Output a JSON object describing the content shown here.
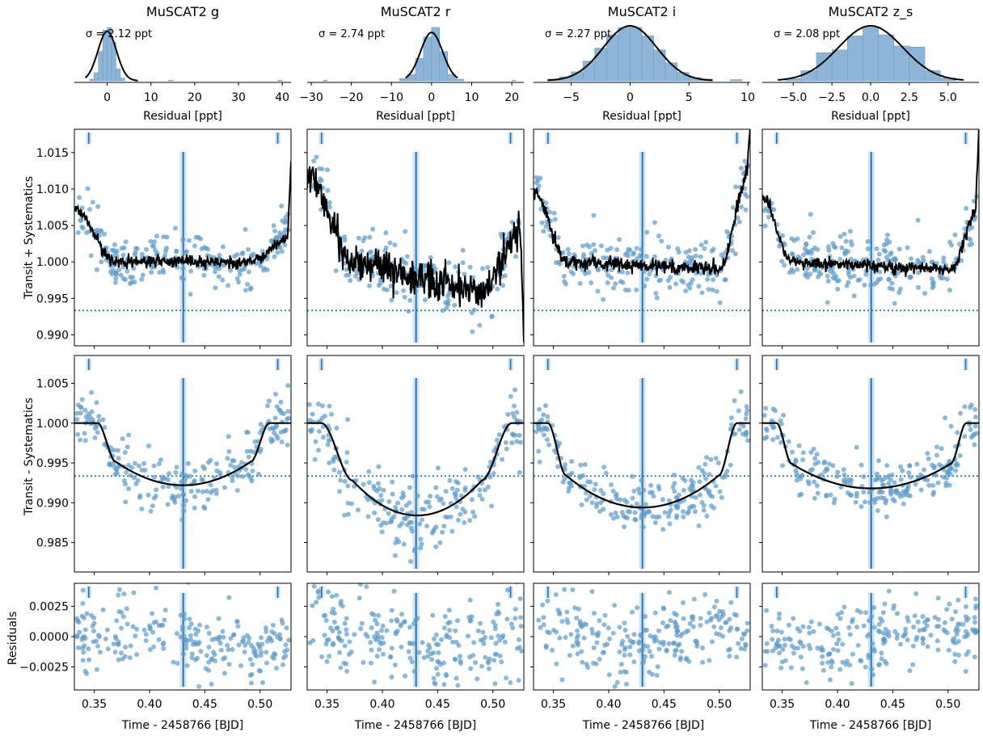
{
  "figure": {
    "time_xlabel": "Time -   2458766 [BJD]",
    "row_ylabels": [
      "Transit + Systematics",
      "Transit - Systematics",
      "Residuals"
    ]
  },
  "chart_data": [
    {
      "type": "histogram",
      "title": "MuSCAT2 g",
      "sigma_label": "σ =  2.12 ppt",
      "xlabel": "Residual [ppt]",
      "xlim": [
        -7.5,
        42
      ],
      "xticks": [
        0,
        10,
        20,
        30,
        40
      ],
      "tick_labels": [
        "0",
        "10",
        "20",
        "30",
        "40"
      ],
      "bins": [
        {
          "x0": -4.0,
          "x1": -3.0,
          "h": 0.03
        },
        {
          "x0": -3.0,
          "x1": -2.0,
          "h": 0.15
        },
        {
          "x0": -2.0,
          "x1": -1.0,
          "h": 0.55
        },
        {
          "x0": -1.0,
          "x1": 0.0,
          "h": 0.95
        },
        {
          "x0": 0.0,
          "x1": 1.0,
          "h": 1.0
        },
        {
          "x0": 1.0,
          "x1": 2.0,
          "h": 0.72
        },
        {
          "x0": 2.0,
          "x1": 3.0,
          "h": 0.22
        },
        {
          "x0": 3.0,
          "x1": 4.0,
          "h": 0.05
        },
        {
          "x0": 14.0,
          "x1": 15.0,
          "h": 0.01
        },
        {
          "x0": 39.0,
          "x1": 40.0,
          "h": 0.01
        }
      ],
      "fit": {
        "mu": 0,
        "sigma": 2.12,
        "range": [
          -5,
          7
        ],
        "peak": 0.9
      }
    },
    {
      "type": "histogram",
      "title": "MuSCAT2 r",
      "sigma_label": "σ =  2.74 ppt",
      "xlabel": "Residual [ppt]",
      "xlim": [
        -31,
        23
      ],
      "xticks": [
        -30,
        -20,
        -10,
        0,
        10,
        20
      ],
      "tick_labels": [
        "−30",
        "−20",
        "−10",
        "0",
        "10",
        "20"
      ],
      "bins": [
        {
          "x0": -27.0,
          "x1": -26.0,
          "h": 0.01
        },
        {
          "x0": -8.0,
          "x1": -6.0,
          "h": 0.04
        },
        {
          "x0": -6.0,
          "x1": -4.0,
          "h": 0.12
        },
        {
          "x0": -4.0,
          "x1": -2.0,
          "h": 0.42
        },
        {
          "x0": -2.0,
          "x1": 0.0,
          "h": 0.82
        },
        {
          "x0": 0.0,
          "x1": 2.0,
          "h": 1.0
        },
        {
          "x0": 2.0,
          "x1": 4.0,
          "h": 0.55
        },
        {
          "x0": 4.0,
          "x1": 6.0,
          "h": 0.12
        },
        {
          "x0": 6.0,
          "x1": 8.0,
          "h": 0.03
        },
        {
          "x0": 20.0,
          "x1": 21.0,
          "h": 0.01
        }
      ],
      "fit": {
        "mu": 0,
        "sigma": 2.74,
        "range": [
          -6.5,
          6.5
        ],
        "peak": 0.88
      }
    },
    {
      "type": "histogram",
      "title": "MuSCAT2 i",
      "sigma_label": "σ =  2.27 ppt",
      "xlabel": "Residual [ppt]",
      "xlim": [
        -8.2,
        10.2
      ],
      "xticks": [
        -5,
        0,
        5,
        10
      ],
      "tick_labels": [
        "−5",
        "0",
        "5",
        "10"
      ],
      "bins": [
        {
          "x0": -7.0,
          "x1": -6.0,
          "h": 0.03
        },
        {
          "x0": -6.0,
          "x1": -5.0,
          "h": 0.07
        },
        {
          "x0": -5.0,
          "x1": -4.0,
          "h": 0.16
        },
        {
          "x0": -4.0,
          "x1": -3.0,
          "h": 0.35
        },
        {
          "x0": -3.0,
          "x1": -2.0,
          "h": 0.58
        },
        {
          "x0": -2.0,
          "x1": -1.0,
          "h": 0.82
        },
        {
          "x0": -1.0,
          "x1": 0.0,
          "h": 0.95
        },
        {
          "x0": 0.0,
          "x1": 1.0,
          "h": 0.95
        },
        {
          "x0": 1.0,
          "x1": 2.0,
          "h": 0.8
        },
        {
          "x0": 2.0,
          "x1": 3.0,
          "h": 0.55
        },
        {
          "x0": 3.0,
          "x1": 4.0,
          "h": 0.32
        },
        {
          "x0": 4.0,
          "x1": 5.0,
          "h": 0.15
        },
        {
          "x0": 5.0,
          "x1": 6.0,
          "h": 0.06
        },
        {
          "x0": 6.0,
          "x1": 7.0,
          "h": 0.03
        },
        {
          "x0": 8.5,
          "x1": 9.5,
          "h": 0.02
        }
      ],
      "fit": {
        "mu": 0,
        "sigma": 2.27,
        "range": [
          -7,
          7
        ],
        "peak": 1.0
      }
    },
    {
      "type": "histogram",
      "title": "MuSCAT2 z_s",
      "sigma_label": "σ =  2.08 ppt",
      "xlabel": "Residual [ppt]",
      "xlim": [
        -7.0,
        7.0
      ],
      "xticks": [
        -5,
        -2.5,
        0,
        2.5,
        5
      ],
      "tick_labels": [
        "−5.0",
        "−2.5",
        "0.0",
        "2.5",
        "5.0"
      ],
      "bins": [
        {
          "x0": -5.5,
          "x1": -4.5,
          "h": 0.04
        },
        {
          "x0": -4.5,
          "x1": -3.5,
          "h": 0.18
        },
        {
          "x0": -3.5,
          "x1": -2.5,
          "h": 0.5
        },
        {
          "x0": -2.5,
          "x1": -1.5,
          "h": 0.55
        },
        {
          "x0": -1.5,
          "x1": -0.5,
          "h": 0.8
        },
        {
          "x0": -0.5,
          "x1": 0.5,
          "h": 0.95
        },
        {
          "x0": 0.5,
          "x1": 1.5,
          "h": 0.82
        },
        {
          "x0": 1.5,
          "x1": 2.5,
          "h": 0.62
        },
        {
          "x0": 2.5,
          "x1": 3.5,
          "h": 0.6
        },
        {
          "x0": 3.5,
          "x1": 4.5,
          "h": 0.18
        },
        {
          "x0": 4.5,
          "x1": 5.5,
          "h": 0.05
        }
      ],
      "fit": {
        "mu": 0,
        "sigma": 2.08,
        "range": [
          -6,
          6
        ],
        "peak": 1.0
      }
    },
    {
      "type": "scatter",
      "panel": "Transit + Systematics",
      "xlim": [
        0.332,
        0.528
      ],
      "ylim": [
        0.9885,
        1.0182
      ],
      "xticks": [
        0.35,
        0.4,
        0.45,
        0.5
      ],
      "xtick_labels": [
        "0.35",
        "0.40",
        "0.45",
        "0.50"
      ],
      "yticks": [
        0.99,
        0.995,
        1.0,
        1.005,
        1.01,
        1.015
      ],
      "ytick_labels": [
        "0.990",
        "0.995",
        "1.000",
        "1.005",
        "1.010",
        "1.015"
      ],
      "reference_level": 0.99335,
      "mid_transit_x": 0.4305,
      "contact_markers_x": [
        0.345,
        0.516
      ],
      "series": [
        {
          "name": "MuSCAT2 g",
          "t1": 0.353,
          "t2": 0.3695,
          "t3": 0.4915,
          "t4": 0.5085,
          "depth": 0.0077,
          "model_noise": 0.0004,
          "scatter": 0.0019,
          "trend": [
            1.0073,
            1.0,
            1.0,
            1.0036
          ],
          "tail": 1.0138
        },
        {
          "name": "MuSCAT2 r",
          "t1": 0.345,
          "t2": 0.373,
          "t3": 0.49,
          "t4": 0.517,
          "depth": 0.0117,
          "model_noise": 0.0012,
          "scatter": 0.0025,
          "trend": [
            1.0118,
            1.0,
            0.996,
            1.005
          ],
          "tail": 0.989
        },
        {
          "name": "MuSCAT2 i",
          "t1": 0.345,
          "t2": 0.3615,
          "t3": 0.4995,
          "t4": 0.516,
          "depth": 0.0107,
          "model_noise": 0.0005,
          "scatter": 0.0022,
          "trend": [
            1.0098,
            1.0,
            0.999,
            1.0125
          ],
          "tail": 1.0185
        },
        {
          "name": "MuSCAT2 z_s",
          "t1": 0.345,
          "t2": 0.3585,
          "t3": 0.5025,
          "t4": 0.5165,
          "depth": 0.0081,
          "model_noise": 0.0004,
          "scatter": 0.002,
          "trend": [
            1.0088,
            1.0,
            0.999,
            1.0075
          ],
          "tail": 1.0185
        }
      ]
    },
    {
      "type": "scatter",
      "panel": "Transit - Systematics",
      "xlim": [
        0.332,
        0.528
      ],
      "ylim": [
        0.9813,
        1.0085
      ],
      "xticks": [
        0.35,
        0.4,
        0.45,
        0.5
      ],
      "xtick_labels": [
        "0.35",
        "0.40",
        "0.45",
        "0.50"
      ],
      "yticks": [
        0.985,
        0.99,
        0.995,
        1.0,
        1.005
      ],
      "ytick_labels": [
        "0.985",
        "0.990",
        "0.995",
        "1.000",
        "1.005"
      ],
      "reference_level": 0.99335,
      "mid_transit_x": 0.4305,
      "contact_markers_x": [
        0.345,
        0.516
      ],
      "series": [
        {
          "name": "MuSCAT2 g",
          "min": 0.9922
        },
        {
          "name": "MuSCAT2 r",
          "min": 0.9884
        },
        {
          "name": "MuSCAT2 i",
          "min": 0.9894
        },
        {
          "name": "MuSCAT2 z_s",
          "min": 0.9918
        }
      ]
    },
    {
      "type": "scatter",
      "panel": "Residuals",
      "xlim": [
        0.332,
        0.528
      ],
      "ylim": [
        -0.0044,
        0.0044
      ],
      "xticks": [
        0.35,
        0.4,
        0.45,
        0.5
      ],
      "xtick_labels": [
        "0.35",
        "0.40",
        "0.45",
        "0.50"
      ],
      "yticks": [
        -0.0025,
        0.0,
        0.0025
      ],
      "ytick_labels": [
        "−0.0025",
        "0.0000",
        "0.0025"
      ],
      "mid_transit_x": 0.4305,
      "contact_markers_x": [
        0.345,
        0.516
      ],
      "series": [
        {
          "name": "MuSCAT2 g",
          "scatter": 0.0021
        },
        {
          "name": "MuSCAT2 r",
          "scatter": 0.0026
        },
        {
          "name": "MuSCAT2 i",
          "scatter": 0.0022
        },
        {
          "name": "MuSCAT2 z_s",
          "scatter": 0.0021
        }
      ]
    }
  ]
}
